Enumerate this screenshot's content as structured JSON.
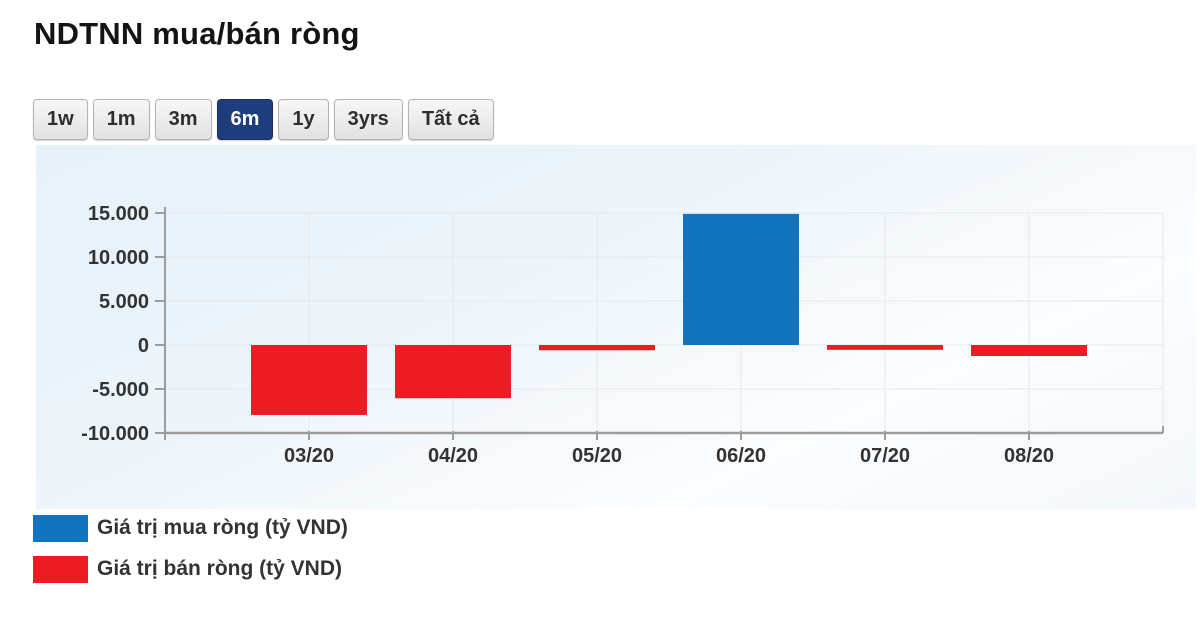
{
  "page": {
    "title": "NDTNN mua/bán ròng"
  },
  "range_buttons": [
    {
      "label": "1w",
      "active": false
    },
    {
      "label": "1m",
      "active": false
    },
    {
      "label": "3m",
      "active": false
    },
    {
      "label": "6m",
      "active": true
    },
    {
      "label": "1y",
      "active": false
    },
    {
      "label": "3yrs",
      "active": false
    },
    {
      "label": "Tất cả",
      "active": false
    }
  ],
  "chart_data": {
    "type": "bar",
    "title": "NDTNN mua/bán ròng",
    "categories": [
      "03/20",
      "04/20",
      "05/20",
      "06/20",
      "07/20",
      "08/20"
    ],
    "series": [
      {
        "name": "Giá trị mua ròng (tỷ VND)",
        "color": "#1274be",
        "values": [
          null,
          null,
          null,
          14900,
          null,
          null
        ]
      },
      {
        "name": "Giá trị bán ròng (tỷ VND)",
        "color": "#ed1c24",
        "values": [
          -7950,
          -6050,
          -600,
          null,
          -550,
          -1250
        ]
      }
    ],
    "unit": "tỷ VND",
    "ylim": [
      -10000,
      15000
    ],
    "ytick_values": [
      15000,
      10000,
      5000,
      0,
      -5000,
      -10000
    ],
    "ytick_labels": [
      "15.000",
      "10.000",
      "5.000",
      "0",
      "-5.000",
      "-10.000"
    ],
    "grid": true,
    "legend_position": "bottom-left"
  },
  "colors": {
    "bar_blue": "#1274be",
    "bar_red": "#ed1c24",
    "active_button_bg": "#1e3d7c",
    "axis_line": "#9c9c9c",
    "grid_line": "#e3e9ee",
    "axis_label": "#333333"
  }
}
